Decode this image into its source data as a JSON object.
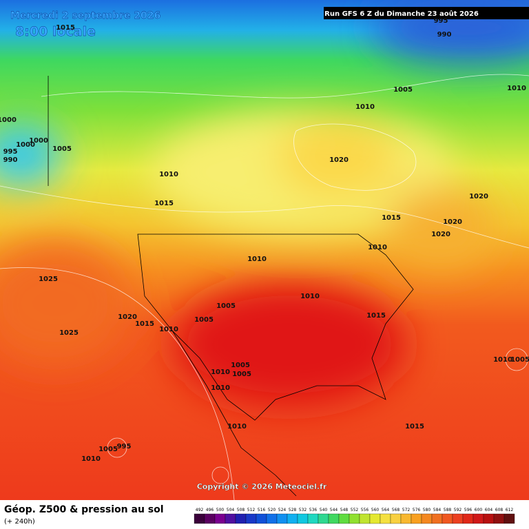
{
  "header": {
    "date": "Mercredi 2 septembre 2026",
    "time": "8:00 locale",
    "run": "Run GFS 6 Z du Dimanche 23 août 2026"
  },
  "isobars": [
    "1015",
    "995",
    "990",
    "1005",
    "1010",
    "1010",
    "1000",
    "995",
    "990",
    "1000",
    "1000",
    "1005",
    "1010",
    "1015",
    "1020",
    "1015",
    "1020",
    "1020",
    "1020",
    "1010",
    "1010",
    "1010",
    "1025",
    "1020",
    "1015",
    "1005",
    "1005",
    "1010",
    "1025",
    "1015",
    "1005",
    "1010",
    "1005",
    "1010",
    "1010",
    "1015",
    "1010",
    "1005",
    "995",
    "1010",
    "1005"
  ],
  "copyright": "Copyright © 2026 Meteociel.fr",
  "footer": {
    "title": "Géop. Z500 & pression au sol",
    "lead": "(+ 240h)",
    "scale": [
      492,
      496,
      500,
      504,
      508,
      512,
      516,
      520,
      524,
      528,
      532,
      536,
      540,
      544,
      548,
      552,
      556,
      560,
      564,
      568,
      572,
      576,
      580,
      584,
      588,
      592,
      596,
      600,
      604,
      608,
      612
    ]
  }
}
